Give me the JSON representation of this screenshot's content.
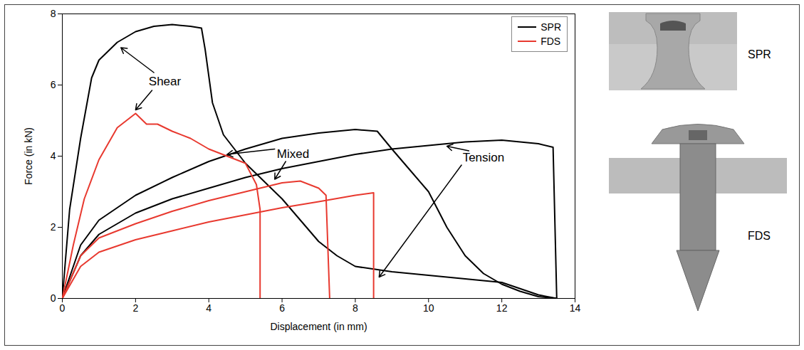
{
  "chart_data": {
    "type": "line",
    "x_label": "Displacement (in mm)",
    "y_label": "Force (in kN)",
    "xlim": [
      0,
      14
    ],
    "xticks": [
      0,
      2,
      4,
      6,
      8,
      10,
      12,
      14
    ],
    "ylim": [
      0,
      8
    ],
    "yticks": [
      0,
      2,
      4,
      6,
      8
    ],
    "legend": "top-right",
    "series": [
      {
        "name": "SPR",
        "color": "#000000",
        "x": [
          0,
          0.2,
          0.5,
          0.8,
          1,
          1.5,
          2,
          2.5,
          3,
          3.5,
          3.8,
          3.9,
          4.1,
          4.4,
          5,
          5.5,
          6,
          6.5,
          7,
          7.5,
          8,
          9,
          10,
          11,
          12,
          13,
          13.5
        ],
        "values": [
          0,
          2.5,
          4.5,
          6.2,
          6.7,
          7.2,
          7.5,
          7.65,
          7.7,
          7.65,
          7.6,
          7.0,
          5.5,
          4.6,
          3.8,
          3.3,
          2.8,
          2.2,
          1.6,
          1.2,
          0.9,
          0.75,
          0.65,
          0.55,
          0.45,
          0.1,
          0
        ]
      },
      {
        "name": "SPR",
        "color": "#000000",
        "x": [
          0,
          0.5,
          1,
          2,
          3,
          4,
          5,
          6,
          7,
          8,
          8.6,
          9,
          9.5,
          10,
          10.5,
          11,
          11.5,
          12,
          12.5,
          13,
          13.5
        ],
        "values": [
          0,
          1.5,
          2.2,
          2.9,
          3.4,
          3.85,
          4.2,
          4.5,
          4.65,
          4.75,
          4.7,
          4.2,
          3.6,
          3.0,
          2.0,
          1.2,
          0.7,
          0.4,
          0.2,
          0.05,
          0
        ]
      },
      {
        "name": "SPR",
        "color": "#000000",
        "x": [
          0,
          0.5,
          1,
          2,
          3,
          4,
          5,
          6,
          7,
          8,
          9,
          10,
          11,
          12,
          13,
          13.4,
          13.5
        ],
        "values": [
          0,
          1.2,
          1.8,
          2.4,
          2.8,
          3.1,
          3.4,
          3.65,
          3.85,
          4.05,
          4.2,
          4.3,
          4.4,
          4.45,
          4.35,
          4.25,
          0
        ]
      },
      {
        "name": "FDS",
        "color": "#e8392f",
        "x": [
          0,
          0.3,
          0.6,
          1,
          1.5,
          2,
          2.1,
          2.3,
          2.6,
          3,
          3.5,
          4,
          4.5,
          5,
          5.3,
          5.4,
          5.4
        ],
        "values": [
          0,
          1.5,
          2.8,
          3.9,
          4.8,
          5.2,
          5.1,
          4.9,
          4.9,
          4.7,
          4.5,
          4.2,
          4.0,
          3.8,
          3.2,
          2.5,
          0
        ]
      },
      {
        "name": "FDS",
        "color": "#e8392f",
        "x": [
          0,
          0.5,
          1,
          2,
          3,
          4,
          5,
          6,
          6.5,
          7,
          7.2,
          7.3
        ],
        "values": [
          0,
          1.2,
          1.7,
          2.1,
          2.45,
          2.75,
          3.0,
          3.25,
          3.3,
          3.1,
          2.9,
          0
        ]
      },
      {
        "name": "FDS",
        "color": "#e8392f",
        "x": [
          0,
          0.5,
          1,
          2,
          3,
          4,
          5,
          6,
          7,
          8,
          8.5,
          8.5
        ],
        "values": [
          0,
          0.9,
          1.3,
          1.65,
          1.9,
          2.15,
          2.35,
          2.55,
          2.72,
          2.9,
          2.97,
          0
        ]
      }
    ],
    "annotations": [
      {
        "text": "Shear",
        "x": 2.8,
        "y": 6.1,
        "arrows": [
          {
            "from": [
              2.5,
              6.35
            ],
            "to": [
              1.6,
              7.05
            ]
          },
          {
            "from": [
              2.45,
              5.85
            ],
            "to": [
              2.0,
              5.3
            ]
          }
        ]
      },
      {
        "text": "Mixed",
        "x": 6.3,
        "y": 4.05,
        "arrows": [
          {
            "from": [
              5.8,
              4.2
            ],
            "to": [
              4.5,
              4.05
            ]
          },
          {
            "from": [
              6.1,
              3.85
            ],
            "to": [
              5.8,
              3.35
            ]
          }
        ]
      },
      {
        "text": "Tension",
        "x": 11.5,
        "y": 3.95,
        "arrows": [
          {
            "from": [
              11.1,
              4.15
            ],
            "to": [
              10.5,
              4.28
            ]
          },
          {
            "from": [
              10.9,
              3.75
            ],
            "to": [
              8.65,
              0.6
            ]
          }
        ]
      }
    ]
  },
  "photos": [
    "SPR",
    "FDS"
  ]
}
